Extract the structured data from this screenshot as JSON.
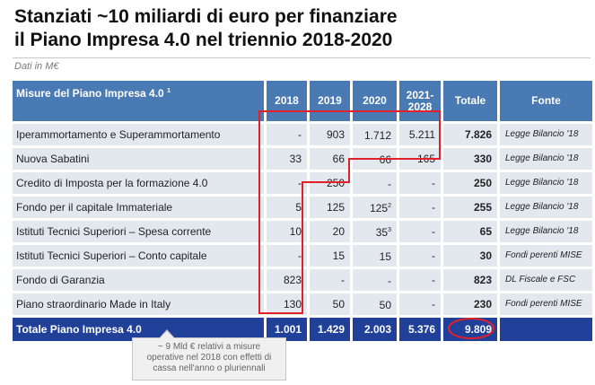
{
  "title": {
    "line1": "Stanziati ~10 miliardi di euro per finanziare",
    "line2": "il Piano Impresa 4.0 nel triennio 2018-2020"
  },
  "note": "Dati in M€",
  "table": {
    "headers": {
      "misure": "Misure del Piano Impresa 4.0",
      "misure_sup": "1",
      "y2018": "2018",
      "y2019": "2019",
      "y2020": "2020",
      "y2021": "2021-2028",
      "totale": "Totale",
      "fonte": "Fonte"
    },
    "rows": [
      {
        "name": "Iperammortamento e Superammortamento",
        "y2018": "-",
        "y2019": "903",
        "y2020": "1.712",
        "y2020_sup": "",
        "y2021": "5.211",
        "total": "7.826",
        "source": "Legge Bilancio '18"
      },
      {
        "name": "Nuova Sabatini",
        "y2018": "33",
        "y2019": "66",
        "y2020": "66",
        "y2020_sup": "",
        "y2021": "165",
        "total": "330",
        "source": "Legge Bilancio '18"
      },
      {
        "name": "Credito di Imposta  per la formazione 4.0",
        "y2018": "-",
        "y2019": "250",
        "y2020": "-",
        "y2020_sup": "",
        "y2021": "-",
        "total": "250",
        "source": "Legge Bilancio '18"
      },
      {
        "name": "Fondo per il capitale Immateriale",
        "y2018": "5",
        "y2019": "125",
        "y2020": "125",
        "y2020_sup": "2",
        "y2021": "-",
        "total": "255",
        "source": "Legge Bilancio '18"
      },
      {
        "name": "Istituti Tecnici Superiori – Spesa corrente",
        "y2018": "10",
        "y2019": "20",
        "y2020": "35",
        "y2020_sup": "3",
        "y2021": "-",
        "total": "65",
        "source": "Legge Bilancio '18"
      },
      {
        "name": "Istituti Tecnici Superiori – Conto capitale",
        "y2018": "-",
        "y2019": "15",
        "y2020": "15",
        "y2020_sup": "",
        "y2021": "-",
        "total": "30",
        "source": "Fondi perenti MISE"
      },
      {
        "name": "Fondo di Garanzia",
        "y2018": "823",
        "y2019": "-",
        "y2020": "-",
        "y2020_sup": "",
        "y2021": "-",
        "total": "823",
        "source": "DL Fiscale e FSC"
      },
      {
        "name": "Piano straordinario Made in Italy",
        "y2018": "130",
        "y2019": "50",
        "y2020": "50",
        "y2020_sup": "",
        "y2021": "-",
        "total": "230",
        "source": "Fondi perenti MISE"
      }
    ],
    "total_row": {
      "name": "Totale Piano Impresa 4.0",
      "y2018": "1.001",
      "y2019": "1.429",
      "y2020": "2.003",
      "y2021": "5.376",
      "total": "9.809",
      "source": ""
    }
  },
  "callout": "~ 9 Mld € relativi a misure\noperative nel 2018 con effetti di\ncassa nell'anno o pluriennali",
  "colors": {
    "header": "#4a7ab3",
    "total_row": "#20409a",
    "row_bg": "#e3e8ef",
    "highlight": "#e0202a"
  }
}
